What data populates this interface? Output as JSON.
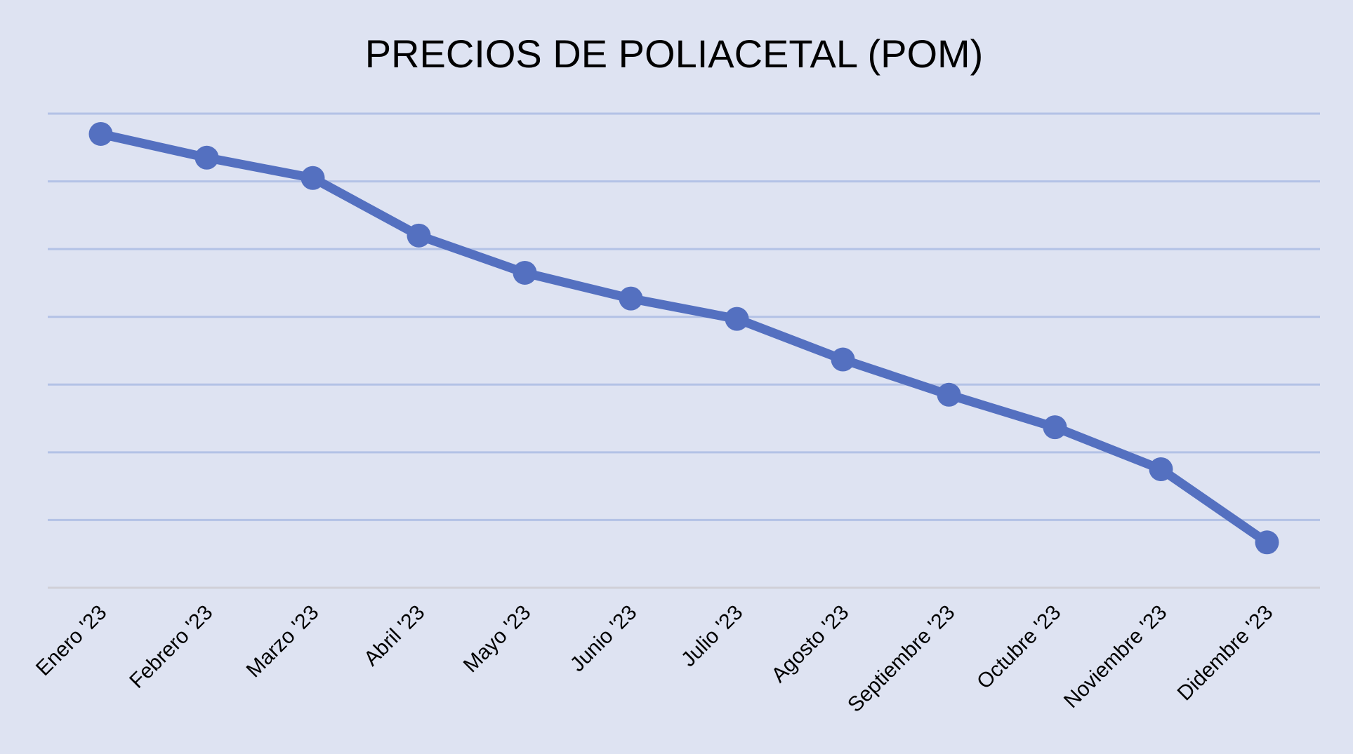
{
  "chart_data": {
    "type": "line",
    "title": "PRECIOS DE POLIACETAL (POM)",
    "xlabel": "",
    "ylabel": "",
    "categories": [
      "Enero '23",
      "Febrero '23",
      "Marzo '23",
      "Abril '23",
      "Mayo '23",
      "Junio '23",
      "Julio '23",
      "Agosto '23",
      "Septiembre '23",
      "Octubre '23",
      "Noviembre '23",
      "Didembre '23"
    ],
    "series": [
      {
        "values": [
          6.7,
          6.35,
          6.05,
          5.2,
          4.65,
          4.27,
          3.97,
          3.37,
          2.85,
          2.37,
          1.75,
          0.67
        ]
      }
    ],
    "ylim": [
      0,
      7
    ],
    "y_gridlines": 7,
    "grid": true,
    "y_tick_labels_visible": false,
    "legend": "none",
    "colors": {
      "background": "#dee3f2",
      "line": "#5470c0",
      "gridline": "#b3c2e6",
      "baseline": "#d0d0d8"
    }
  }
}
